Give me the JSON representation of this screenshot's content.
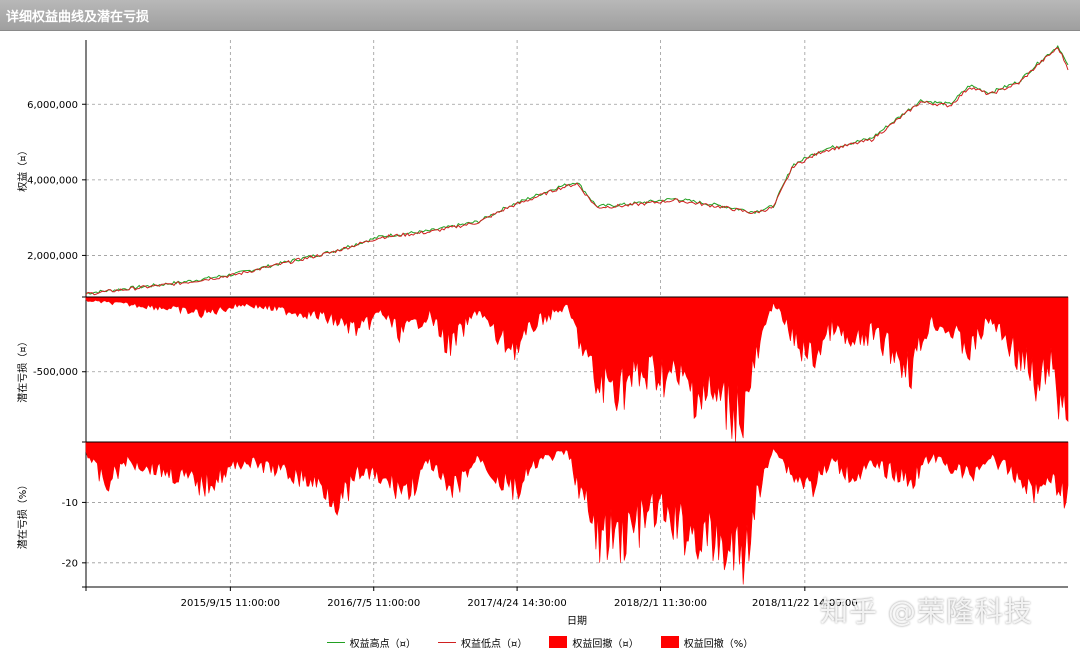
{
  "window": {
    "title": "详细权益曲线及潜在亏损"
  },
  "watermark": "知乎 @荣隆科技",
  "colors": {
    "high": "#22a022",
    "low": "#d02020",
    "drawdown": "#ff0000",
    "grid": "#9a9a9a"
  },
  "chart_data": [
    {
      "type": "line",
      "panel": "equity",
      "ylabel": "权益（¤）",
      "ylim": [
        900000,
        7700000
      ],
      "yticks": [
        2000000,
        4000000,
        6000000
      ],
      "ytick_labels": [
        "2,000,000",
        "4,000,000",
        "6,000,000"
      ],
      "x": [
        0,
        0.05,
        0.1,
        0.15,
        0.2,
        0.25,
        0.3,
        0.35,
        0.4,
        0.43,
        0.45,
        0.48,
        0.5,
        0.52,
        0.55,
        0.6,
        0.65,
        0.68,
        0.7,
        0.72,
        0.75,
        0.8,
        0.85,
        0.88,
        0.9,
        0.92,
        0.95,
        0.97,
        0.99,
        1.0
      ],
      "series": [
        {
          "name": "权益高点（¤）",
          "color": "#22a022",
          "values": [
            1000000,
            1150000,
            1300000,
            1500000,
            1800000,
            2100000,
            2500000,
            2650000,
            2900000,
            3300000,
            3500000,
            3800000,
            3950000,
            3300000,
            3350000,
            3500000,
            3300000,
            3150000,
            3300000,
            4400000,
            4800000,
            5100000,
            6100000,
            6000000,
            6500000,
            6300000,
            6600000,
            7100000,
            7550000,
            7000000
          ]
        },
        {
          "name": "权益低点（¤）",
          "color": "#d02020",
          "values": [
            980000,
            1130000,
            1280000,
            1480000,
            1780000,
            2080000,
            2480000,
            2620000,
            2880000,
            3270000,
            3460000,
            3760000,
            3900000,
            3270000,
            3320000,
            3460000,
            3270000,
            3120000,
            3270000,
            4360000,
            4760000,
            5060000,
            6060000,
            5960000,
            6460000,
            6260000,
            6560000,
            7060000,
            7500000,
            6950000
          ]
        }
      ]
    },
    {
      "type": "area",
      "panel": "drawdown-abs",
      "ylabel": "潜在亏损（¤）",
      "ylim": [
        -970000,
        0
      ],
      "yticks": [
        -500000
      ],
      "ytick_labels": [
        "-500,000"
      ],
      "series": [
        {
          "name": "权益回撤（¤）",
          "color": "#ff0000",
          "x": [
            0,
            0.04,
            0.08,
            0.12,
            0.16,
            0.2,
            0.24,
            0.28,
            0.3,
            0.32,
            0.35,
            0.37,
            0.4,
            0.42,
            0.44,
            0.46,
            0.49,
            0.52,
            0.55,
            0.58,
            0.6,
            0.62,
            0.64,
            0.66,
            0.67,
            0.68,
            0.7,
            0.72,
            0.74,
            0.76,
            0.78,
            0.8,
            0.82,
            0.84,
            0.86,
            0.88,
            0.9,
            0.92,
            0.94,
            0.96,
            0.97,
            0.98,
            0.99,
            1.0
          ],
          "values": [
            -30000,
            -60000,
            -90000,
            -140000,
            -60000,
            -110000,
            -160000,
            -280000,
            -120000,
            -300000,
            -150000,
            -420000,
            -100000,
            -360000,
            -420000,
            -200000,
            -80000,
            -750000,
            -720000,
            -620000,
            -680000,
            -780000,
            -850000,
            -930000,
            -960000,
            -600000,
            -40000,
            -350000,
            -520000,
            -250000,
            -420000,
            -300000,
            -440000,
            -600000,
            -200000,
            -280000,
            -450000,
            -180000,
            -380000,
            -620000,
            -850000,
            -500000,
            -870000,
            -880000
          ]
        }
      ]
    },
    {
      "type": "area",
      "panel": "drawdown-pct",
      "ylabel": "潜在亏损（%）",
      "ylim": [
        -24,
        0
      ],
      "yticks": [
        -10,
        -20
      ],
      "ytick_labels": [
        "-10",
        "-20"
      ],
      "xlabel": "日期",
      "xtick_labels": [
        "2015/9/15 11:00:00",
        "2016/7/5 11:00:00",
        "2017/4/24 14:30:00",
        "2018/2/1 11:30:00",
        "2018/11/22 14:00:00"
      ],
      "xtick_positions": [
        0.147,
        0.293,
        0.439,
        0.585,
        0.732
      ],
      "series": [
        {
          "name": "权益回撤（%）",
          "color": "#ff0000",
          "x": [
            0,
            0.02,
            0.04,
            0.08,
            0.12,
            0.16,
            0.2,
            0.24,
            0.26,
            0.28,
            0.3,
            0.33,
            0.35,
            0.37,
            0.4,
            0.42,
            0.44,
            0.46,
            0.49,
            0.52,
            0.55,
            0.58,
            0.6,
            0.62,
            0.64,
            0.66,
            0.67,
            0.68,
            0.7,
            0.72,
            0.74,
            0.76,
            0.78,
            0.8,
            0.82,
            0.84,
            0.86,
            0.88,
            0.9,
            0.92,
            0.94,
            0.96,
            0.97,
            0.98,
            0.99,
            1.0
          ],
          "values": [
            -2,
            -9,
            -4,
            -6,
            -9,
            -4,
            -6,
            -9,
            -12.5,
            -6,
            -8,
            -10,
            -4,
            -11,
            -3,
            -8,
            -10,
            -4,
            -2,
            -20,
            -19,
            -14,
            -17,
            -19,
            -21,
            -23,
            -24,
            -14,
            -1,
            -7,
            -9,
            -4,
            -7,
            -5,
            -6,
            -8,
            -3,
            -5,
            -7,
            -3,
            -6,
            -9,
            -11,
            -6,
            -10,
            -11
          ]
        }
      ]
    }
  ],
  "legend": [
    {
      "label": "权益高点（¤）",
      "kind": "line",
      "color": "#22a022"
    },
    {
      "label": "权益低点（¤）",
      "kind": "line",
      "color": "#d02020"
    },
    {
      "label": "权益回撤（¤）",
      "kind": "box",
      "color": "#ff0000"
    },
    {
      "label": "权益回撤（%）",
      "kind": "box",
      "color": "#ff0000"
    }
  ]
}
